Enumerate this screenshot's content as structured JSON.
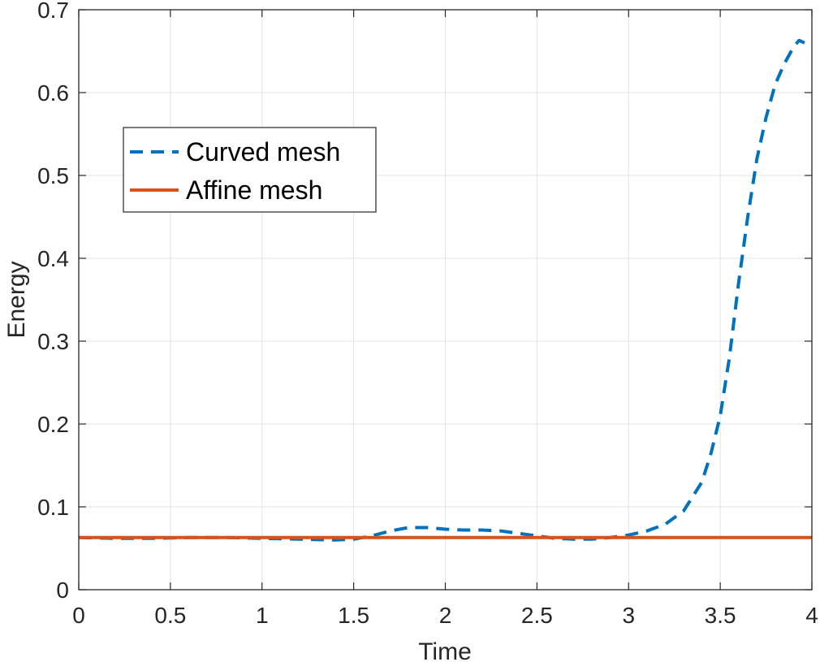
{
  "chart_data": {
    "type": "line",
    "xlabel": "Time",
    "ylabel": "Energy",
    "xlim": [
      0,
      4
    ],
    "ylim": [
      0,
      0.7
    ],
    "xticks": [
      0,
      0.5,
      1,
      1.5,
      2,
      2.5,
      3,
      3.5,
      4
    ],
    "xtick_labels": [
      "0",
      "0.5",
      "1",
      "1.5",
      "2",
      "2.5",
      "3",
      "3.5",
      "4"
    ],
    "yticks": [
      0,
      0.1,
      0.2,
      0.3,
      0.4,
      0.5,
      0.6,
      0.7
    ],
    "ytick_labels": [
      "0",
      "0.1",
      "0.2",
      "0.3",
      "0.4",
      "0.5",
      "0.6",
      "0.7"
    ],
    "grid": true,
    "legend_position": "upper-left",
    "series": [
      {
        "name": "Curved mesh",
        "color": "#0072BD",
        "style": "dashed",
        "x": [
          0,
          0.2,
          0.4,
          0.6,
          0.8,
          1.0,
          1.2,
          1.4,
          1.5,
          1.6,
          1.7,
          1.8,
          1.9,
          2.0,
          2.1,
          2.2,
          2.3,
          2.4,
          2.5,
          2.6,
          2.7,
          2.8,
          2.9,
          3.0,
          3.1,
          3.2,
          3.3,
          3.4,
          3.45,
          3.5,
          3.55,
          3.6,
          3.65,
          3.7,
          3.75,
          3.8,
          3.85,
          3.9,
          3.93,
          3.96
        ],
        "y": [
          0.063,
          0.062,
          0.062,
          0.063,
          0.063,
          0.062,
          0.061,
          0.06,
          0.061,
          0.065,
          0.071,
          0.075,
          0.075,
          0.073,
          0.072,
          0.072,
          0.071,
          0.068,
          0.065,
          0.062,
          0.061,
          0.061,
          0.063,
          0.066,
          0.071,
          0.079,
          0.095,
          0.13,
          0.165,
          0.21,
          0.28,
          0.37,
          0.45,
          0.52,
          0.57,
          0.61,
          0.635,
          0.655,
          0.663,
          0.66
        ]
      },
      {
        "name": "Affine mesh",
        "color": "#D95319",
        "style": "solid",
        "x": [
          0,
          4
        ],
        "y": [
          0.063,
          0.063
        ]
      }
    ]
  }
}
